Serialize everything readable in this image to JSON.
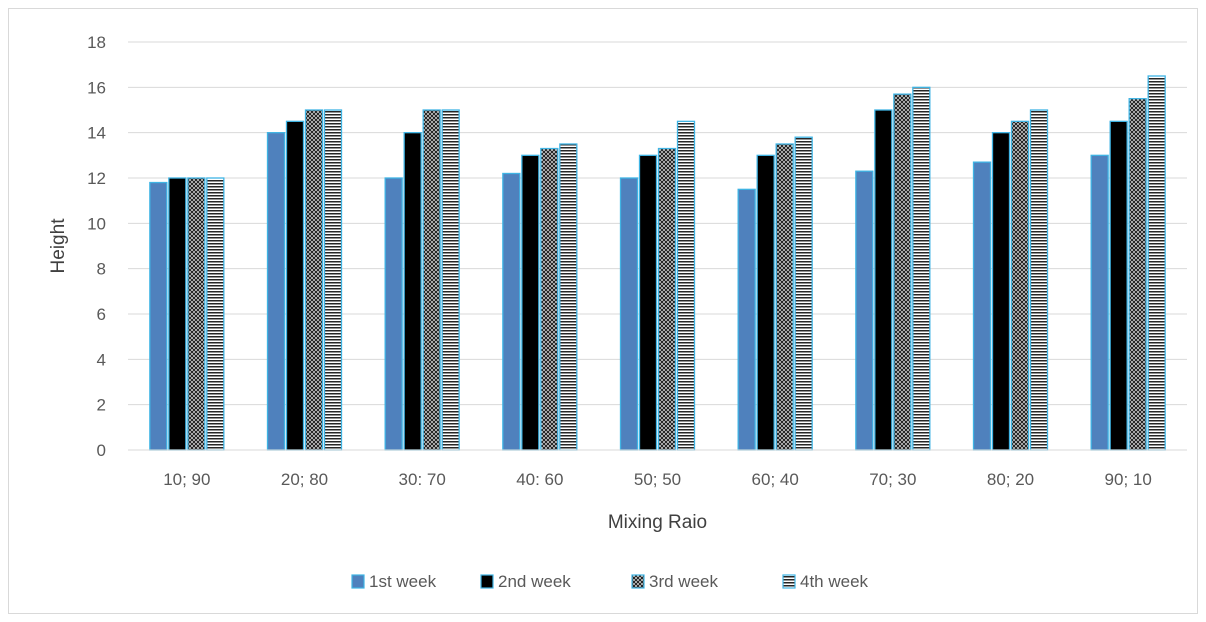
{
  "chart_data": {
    "type": "bar",
    "ylabel": "Height",
    "xlabel": "Mixing Raio",
    "ylim": [
      0,
      18
    ],
    "ytick_step": 2,
    "grid": true,
    "legend_position": "bottom",
    "categories": [
      "10; 90",
      "20; 80",
      "30: 70",
      "40: 60",
      "50; 50",
      "60; 40",
      "70; 30",
      "80; 20",
      "90; 10"
    ],
    "series": [
      {
        "name": "1st week",
        "values": [
          11.8,
          14.0,
          12.0,
          12.2,
          12.0,
          11.5,
          12.3,
          12.7,
          13.0
        ],
        "fill": "solid-blue"
      },
      {
        "name": "2nd week",
        "values": [
          12.0,
          14.5,
          14.0,
          13.0,
          13.0,
          13.0,
          15.0,
          14.0,
          14.5
        ],
        "fill": "solid-black"
      },
      {
        "name": "3rd week",
        "values": [
          12.0,
          15.0,
          15.0,
          13.3,
          13.3,
          13.5,
          15.7,
          14.5,
          15.5
        ],
        "fill": "crosshatch"
      },
      {
        "name": "4th week",
        "values": [
          12.0,
          15.0,
          15.0,
          13.5,
          14.5,
          13.8,
          16.0,
          15.0,
          16.5
        ],
        "fill": "horizontal-stripes"
      }
    ]
  },
  "colors": {
    "series1": "#4f81bd",
    "series2": "#000000",
    "border": "#3fb4e4",
    "grid": "#d9d9d9",
    "pattern_dark": "#262626"
  }
}
